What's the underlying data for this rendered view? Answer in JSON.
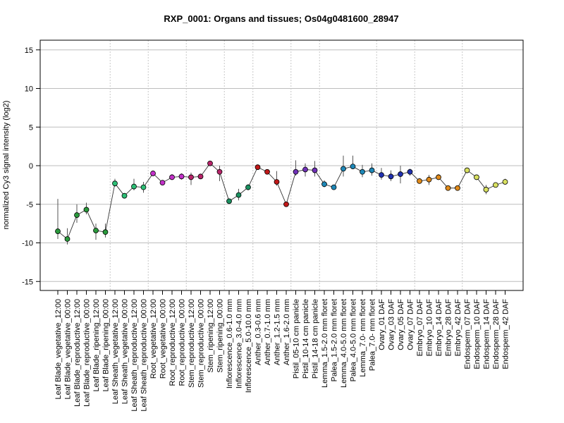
{
  "chart_data": {
    "type": "line",
    "title": "RXP_0001: Organs and tissues; Os04g0481600_28947",
    "ylabel": "normalized Cy3 signal intensity (log2)",
    "xlabel": "",
    "ylim": [
      -16,
      16
    ],
    "yticks": [
      -15,
      -10,
      -5,
      0,
      5,
      10,
      15
    ],
    "grid": true,
    "categories": [
      "Leaf Blade_vegetative_12:00",
      "Leaf Blade_vegetative_00:00",
      "Leaf Blade_reproductive_12:00",
      "Leaf Blade_reproductive_00:00",
      "Leaf Blade_ripening_12:00",
      "Leaf Blade_ripening_00:00",
      "Leaf Sheath_vegetative_12:00",
      "Leaf Sheath_vegetative_00:00",
      "Leaf Sheath_reproductive_12:00",
      "Leaf Sheath_reproductive_00:00",
      "Root_vegetative_12:00",
      "Root_vegetative_00:00",
      "Root_reproductive_12:00",
      "Root_reproductive_00:00",
      "Stem_reproductive_12:00",
      "Stem_reproductive_00:00",
      "Stem_ripening_12:00",
      "Stem_ripening_00:00",
      "Inflorescence_0.6-1.0 mm",
      "Inflorescence_3.0-4.0 mm",
      "Inflorescence_5.0-10.0 mm",
      "Anther_0.3-0.6 mm",
      "Anther_0.7-1.0 mm",
      "Anther_1.2-1.5 mm",
      "Anther_1.6-2.0 mm",
      "Pistil_05-10 cm panicle",
      "Pistil_10-14 cm panicle",
      "Pistil_14-18 cm panicle",
      "Lemma_1.5-2.0 mm floret",
      "Palea_1.5-2.0 mm floret",
      "Lemma_4.0-5.0 mm floret",
      "Palea_4.0-5.0 mm floret",
      "Lemma_7.0- mm floret",
      "Palea_7.0- mm floret",
      "Ovary_01 DAF",
      "Ovary_03 DAF",
      "Ovary_05 DAF",
      "Ovary_07 DAF",
      "Embryo_07 DAF",
      "Embryo_10 DAF",
      "Embryo_14 DAF",
      "Embryo_28 DAF",
      "Embryo_42 DAF",
      "Endosperm_07 DAF",
      "Endosperm_10 DAF",
      "Endosperm_14 DAF",
      "Endosperm_28 DAF",
      "Endosperm_42 DAF"
    ],
    "values": [
      -8.5,
      -9.5,
      -6.4,
      -5.7,
      -8.4,
      -8.6,
      -2.3,
      -3.9,
      -2.7,
      -2.8,
      -1.0,
      -2.2,
      -1.5,
      -1.4,
      -1.5,
      -1.4,
      0.3,
      -0.8,
      -4.6,
      -3.8,
      -2.8,
      -0.2,
      -0.8,
      -2.1,
      -5.0,
      -0.8,
      -0.5,
      -0.6,
      -2.4,
      -2.8,
      -0.4,
      -0.1,
      -0.8,
      -0.6,
      -1.2,
      -1.4,
      -1.1,
      -0.8,
      -2.0,
      -1.8,
      -1.5,
      -2.9,
      -2.9,
      -0.6,
      -1.5,
      -3.1,
      -2.5,
      -2.1
    ],
    "error_low": [
      -9.5,
      -10.2,
      -7.4,
      -6.3,
      -9.6,
      -9.3,
      -2.7,
      -4.2,
      -3.2,
      -3.5,
      -1.3,
      -2.5,
      -1.8,
      -1.8,
      -2.5,
      -1.7,
      0.1,
      -2.0,
      -4.9,
      -4.5,
      -3.2,
      -0.4,
      -1.1,
      -2.6,
      -5.2,
      -1.3,
      -1.4,
      -1.4,
      -2.8,
      -3.0,
      -1.4,
      -0.4,
      -1.5,
      -1.3,
      -1.8,
      -2.0,
      -2.3,
      -1.3,
      -2.3,
      -2.5,
      -1.8,
      -3.1,
      -3.1,
      -0.8,
      -1.8,
      -3.7,
      -2.8,
      -2.4
    ],
    "error_high": [
      -4.3,
      -8.1,
      -5.0,
      -4.8,
      -7.5,
      -7.5,
      -1.7,
      -3.6,
      -1.7,
      -2.1,
      -0.8,
      -1.9,
      -1.1,
      -1.0,
      -0.9,
      -1.1,
      0.6,
      0.0,
      -4.3,
      -3.0,
      -2.4,
      0.1,
      -0.5,
      -0.7,
      -4.8,
      0.7,
      0.3,
      0.6,
      -1.9,
      -2.6,
      1.3,
      1.3,
      0.1,
      0.3,
      -0.3,
      -0.6,
      0.0,
      -0.4,
      -1.6,
      -1.2,
      -1.1,
      -2.7,
      -2.7,
      -0.4,
      -1.2,
      -2.5,
      -2.3,
      -1.7
    ],
    "colors": [
      "#2a9a3c",
      "#2a9a3c",
      "#2a9a3c",
      "#2a9a3c",
      "#2a9a3c",
      "#2a9a3c",
      "#2dbf76",
      "#2dbf76",
      "#2dbf76",
      "#2dbf76",
      "#c230c8",
      "#c230c8",
      "#c230c8",
      "#c230c8",
      "#b8246a",
      "#b8246a",
      "#b8246a",
      "#b8246a",
      "#1a9060",
      "#1a9060",
      "#1a9060",
      "#c01818",
      "#c01818",
      "#c01818",
      "#c01818",
      "#7030b8",
      "#7030b8",
      "#7030b8",
      "#1e88b8",
      "#1e88b8",
      "#1e88b8",
      "#1e88b8",
      "#1e88b8",
      "#1e88b8",
      "#2030b0",
      "#2030b0",
      "#2030b0",
      "#2030b0",
      "#e08a1a",
      "#e08a1a",
      "#e08a1a",
      "#e08a1a",
      "#e08a1a",
      "#d8e060",
      "#d8e060",
      "#d8e060",
      "#d8e060",
      "#d8e060"
    ],
    "group_boundaries_after_index": [
      5,
      9,
      13,
      17,
      20,
      24,
      27,
      33,
      37,
      42
    ]
  }
}
